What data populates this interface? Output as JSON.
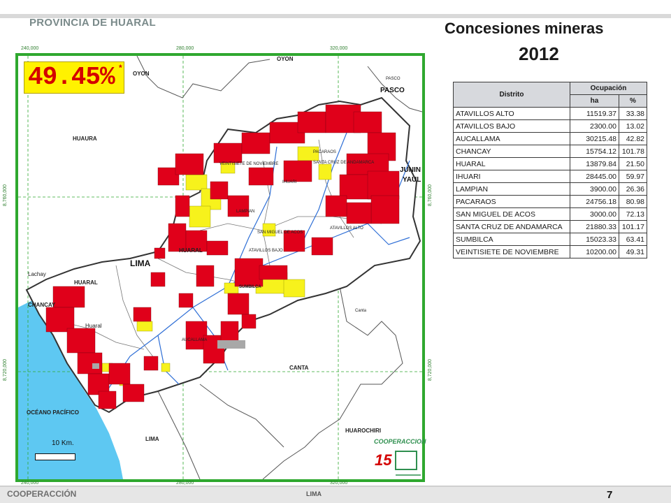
{
  "map": {
    "province_title": "PROVINCIA DE HUARAL",
    "percentage": "49.45%",
    "percentage_star": "*",
    "scale_label": "10 Km.",
    "coords": {
      "top": [
        "240,000",
        "280,000",
        "320,000"
      ],
      "bottom": [
        "240,000",
        "280,000",
        "320,000"
      ],
      "left": [
        "8,760,000",
        "8,720,000"
      ],
      "right": [
        "8,760,000",
        "8,720,000"
      ]
    },
    "places": {
      "oyon_top": "OYON",
      "oyon_left": "OYON",
      "pasco_small": "PASCO",
      "pasco": "PASCO",
      "huaura": "HUAURA",
      "junin": "JUNIN",
      "yauli": "YAUL",
      "lima": "LIMA",
      "huaral_dist": "HUARAL",
      "huaral_city": "HUARAL",
      "lampian": "LAMPIAN",
      "pacaraos": "PACARAOS",
      "veintisiete": "VEINTISIETE DE NOVIEMBRE",
      "santa_cruz": "SANTA CRUZ DE ANDAMARCA",
      "san_miguel": "SAN MIGUEL DE ACOS",
      "atavillos_bajo": "ATAVILLOS BAJO",
      "atavillos_alto": "ATAVILLOS ALTO",
      "ihuari": "IHUARI",
      "sumbilca": "SUMBILCA",
      "aucallama": "AUCALLAMA",
      "chancay": "CHANCAY",
      "huaral_lower": "Huaral",
      "lachay": "Lachay",
      "canta_small": "Canta",
      "canta": "CANTA",
      "lima_bottom": "LIMA",
      "oceano": "OCÉANO PACÍFICO",
      "huarochiri": "HUAROCHIRI"
    },
    "logo_text": "COOPERACCION"
  },
  "header": {
    "title_line1": "Concesiones mineras",
    "title_line2": "2012"
  },
  "table": {
    "col_district": "Distrito",
    "col_occupation": "Ocupación",
    "col_ha": "ha",
    "col_pct": "%",
    "rows": [
      {
        "district": "ATAVILLOS ALTO",
        "ha": "11519.37",
        "pct": "33.38"
      },
      {
        "district": "ATAVILLOS BAJO",
        "ha": "2300.00",
        "pct": "13.02"
      },
      {
        "district": "AUCALLAMA",
        "ha": "30215.48",
        "pct": "42.82"
      },
      {
        "district": "CHANCAY",
        "ha": "15754.12",
        "pct": "101.78"
      },
      {
        "district": "HUARAL",
        "ha": "13879.84",
        "pct": "21.50"
      },
      {
        "district": "IHUARI",
        "ha": "28445.00",
        "pct": "59.97"
      },
      {
        "district": "LAMPIAN",
        "ha": "3900.00",
        "pct": "26.36"
      },
      {
        "district": "PACARAOS",
        "ha": "24756.18",
        "pct": "80.98"
      },
      {
        "district": "SAN MIGUEL DE ACOS",
        "ha": "3000.00",
        "pct": "72.13"
      },
      {
        "district": "SANTA CRUZ DE ANDAMARCA",
        "ha": "21880.33",
        "pct": "101.17"
      },
      {
        "district": "SUMBILCA",
        "ha": "15023.33",
        "pct": "63.41"
      },
      {
        "district": "VEINTISIETE DE NOVIEMBRE",
        "ha": "10200.00",
        "pct": "49.31"
      }
    ]
  },
  "footer": {
    "left": "COOPERACCIÓN",
    "middle": "LIMA",
    "page": "7"
  },
  "colors": {
    "concession_red": "#e0001a",
    "concession_yellow": "#f7f21c",
    "frame_green": "#2fa82f",
    "ocean_blue": "#5ec8f2",
    "river_blue": "#2f6fd6"
  }
}
